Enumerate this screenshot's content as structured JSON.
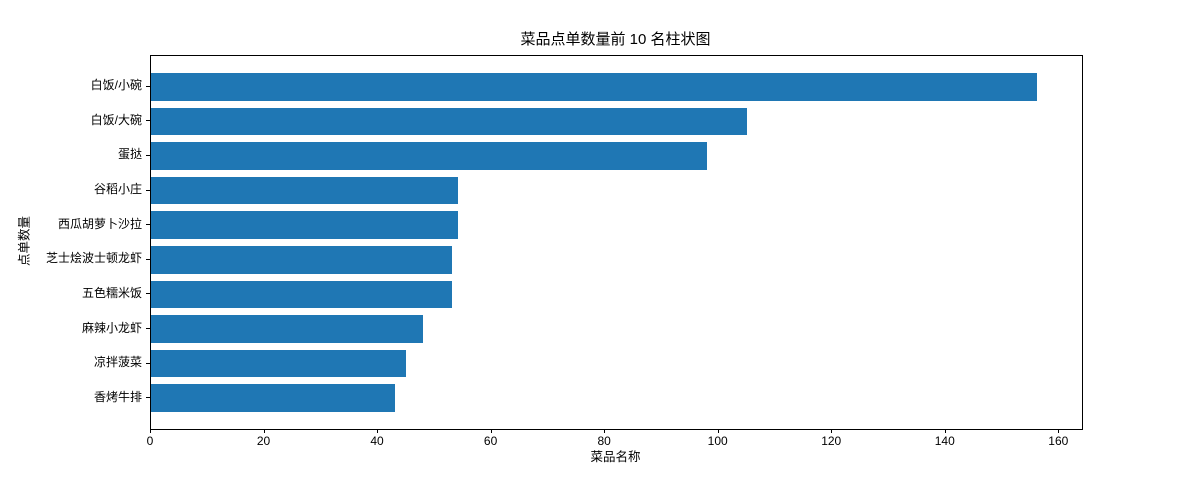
{
  "chart_data": {
    "type": "bar",
    "orientation": "horizontal",
    "title": "菜品点单数量前 10 名柱状图",
    "xlabel": "菜品名称",
    "ylabel": "点单数量",
    "categories": [
      "白饭/小碗",
      "白饭/大碗",
      "蛋挞",
      "谷稻小庄",
      "西瓜胡萝卜沙拉",
      "芝士烩波士顿龙虾",
      "五色糯米饭",
      "麻辣小龙虾",
      "凉拌菠菜",
      "香烤牛排"
    ],
    "values": [
      156,
      105,
      98,
      54,
      54,
      53,
      53,
      48,
      45,
      43
    ],
    "x_ticks": [
      0,
      20,
      40,
      60,
      80,
      100,
      120,
      140,
      160
    ],
    "xlim": [
      0,
      164
    ],
    "bar_color": "#1f77b4",
    "axis_color": "#000000",
    "background_color": "#ffffff",
    "grid": false,
    "legend_position": "none"
  }
}
